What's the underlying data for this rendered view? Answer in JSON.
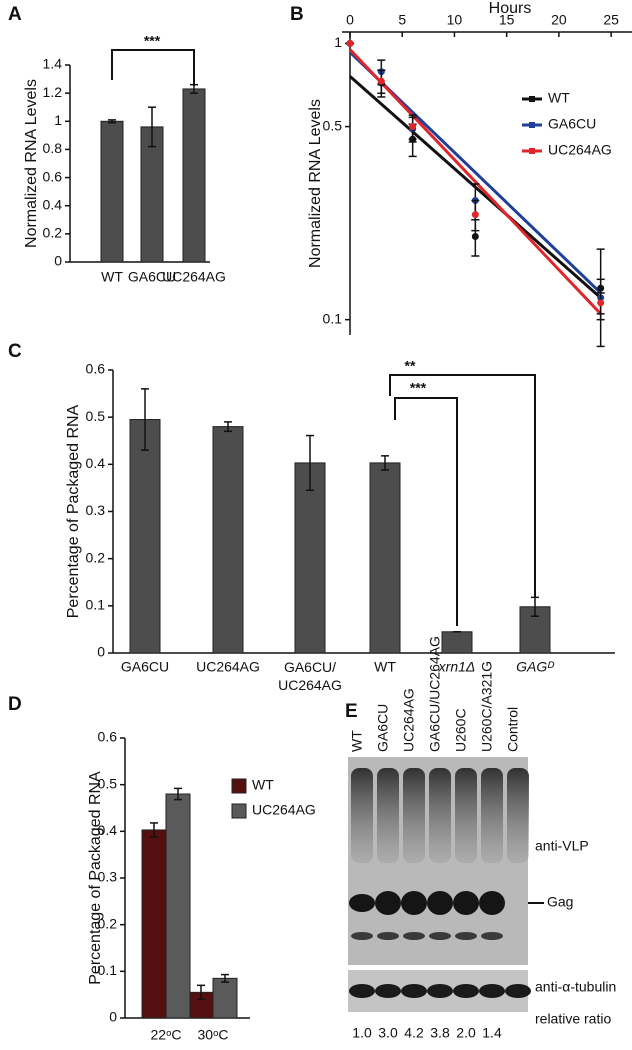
{
  "chart_data": [
    {
      "panel": "A",
      "type": "bar",
      "y_label": "Normalized RNA Levels",
      "categories": [
        "WT",
        "GA6CU",
        "UC264AG"
      ],
      "values": [
        1.0,
        0.96,
        1.23
      ],
      "errors": [
        0.01,
        0.14,
        0.03
      ],
      "color": "#4d4d4d",
      "ylim": [
        0,
        1.4
      ],
      "yticks": [
        0,
        0.2,
        0.4,
        0.6,
        0.8,
        1,
        1.2,
        1.4
      ],
      "annotations": [
        "***"
      ]
    },
    {
      "panel": "B",
      "type": "line",
      "x_label": "Hours",
      "y_label": "Normalized RNA Levels",
      "log_y": true,
      "x": [
        0,
        3,
        6,
        12,
        24
      ],
      "xlim": [
        0,
        27
      ],
      "xticks": [
        0,
        5,
        10,
        15,
        20,
        25
      ],
      "ylim": [
        0.088,
        1.1
      ],
      "yticks": [
        0.1,
        0.5,
        1
      ],
      "legend": "upper right",
      "fit_x": [
        0,
        24
      ],
      "series": [
        {
          "name": "WT",
          "color": "#111111",
          "values": [
            1,
            0.72,
            0.45,
            0.2,
            0.13
          ],
          "errors": [
            0,
            0.08,
            0.06,
            0.03,
            0.05
          ],
          "fit": [
            0.76,
            0.12
          ]
        },
        {
          "name": "GA6CU",
          "color": "#1f3f99",
          "values": [
            1,
            0.79,
            0.49,
            0.27,
            0.12
          ],
          "errors": [
            0,
            0.08,
            0.05,
            0.04,
            0.02
          ],
          "fit": [
            0.93,
            0.125
          ]
        },
        {
          "name": "UC264AG",
          "color": "#e0262b",
          "values": [
            1,
            0.73,
            0.5,
            0.24,
            0.115
          ],
          "errors": [
            0,
            0.07,
            0.05,
            0.03,
            0.01
          ],
          "fit": [
            0.95,
            0.105
          ]
        }
      ]
    },
    {
      "panel": "C",
      "type": "bar",
      "y_label": "Percentage of Packaged RNA",
      "categories": [
        "GA6CU",
        "UC264AG",
        "GA6CU/UC264AG",
        "WT",
        "xrn1Δ",
        "GAGᴰ"
      ],
      "category_style": [
        "normal",
        "normal",
        "normal",
        "normal",
        "italic",
        "italic"
      ],
      "values": [
        0.495,
        0.48,
        0.403,
        0.403,
        0.045,
        0.098
      ],
      "errors": [
        0.065,
        0.01,
        0.058,
        0.015,
        0,
        0.02
      ],
      "color": "#4d4d4d",
      "ylim": [
        0,
        0.6
      ],
      "yticks": [
        0,
        0.1,
        0.2,
        0.3,
        0.4,
        0.5,
        0.6
      ],
      "annotations": [
        "**",
        "***"
      ]
    },
    {
      "panel": "D",
      "type": "bar",
      "y_label": "Percentage of Packaged RNA",
      "categories": [
        "22ᵒC",
        "30ᵒC"
      ],
      "legend": "upper right",
      "ylim": [
        0,
        0.6
      ],
      "yticks": [
        0,
        0.1,
        0.2,
        0.3,
        0.4,
        0.5,
        0.6
      ],
      "series": [
        {
          "name": "WT",
          "color": "#541010",
          "values": [
            0.403,
            0.055
          ],
          "errors": [
            0.015,
            0.015
          ]
        },
        {
          "name": "UC264AG",
          "color": "#5a5a5a",
          "values": [
            0.48,
            0.085
          ],
          "errors": [
            0.012,
            0.008
          ]
        }
      ]
    }
  ],
  "blot": {
    "panel": "E",
    "lanes": [
      "WT",
      "GA6CU",
      "UC264AG",
      "GA6CU/UC264AG",
      "U260C",
      "U260C/A321G",
      "Control"
    ],
    "labels": [
      "anti-VLP",
      "Gag",
      "anti-α-tubulin",
      "relative ratio"
    ],
    "ratios": [
      "1.0",
      "3.0",
      "4.2",
      "3.8",
      "2.0",
      "1.4"
    ]
  }
}
